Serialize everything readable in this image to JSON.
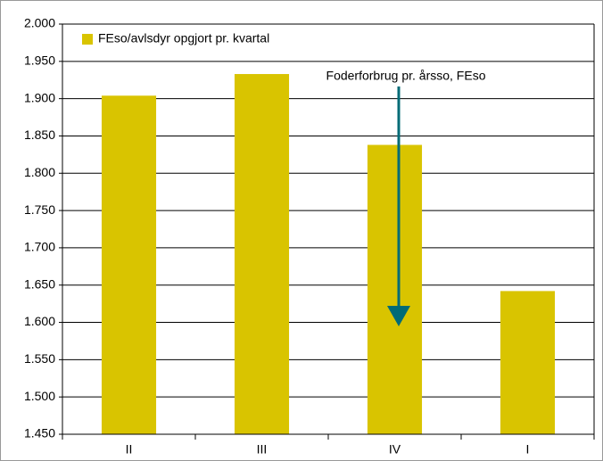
{
  "chart_data": {
    "type": "bar",
    "categories": [
      "II",
      "III",
      "IV",
      "I"
    ],
    "series": [
      {
        "name": "FEso/avlsdyr opgjort pr. kvartal",
        "color": "#d9c400",
        "values": [
          1904,
          1933,
          1838,
          1642
        ]
      }
    ],
    "ylim": [
      1450,
      2000
    ],
    "yticks": [
      {
        "value": 1450,
        "label": "1.450"
      },
      {
        "value": 1500,
        "label": "1.500"
      },
      {
        "value": 1550,
        "label": "1.550"
      },
      {
        "value": 1600,
        "label": "1.600"
      },
      {
        "value": 1650,
        "label": "1.650"
      },
      {
        "value": 1700,
        "label": "1.700"
      },
      {
        "value": 1750,
        "label": "1.750"
      },
      {
        "value": 1800,
        "label": "1.800"
      },
      {
        "value": 1850,
        "label": "1.850"
      },
      {
        "value": 1900,
        "label": "1.900"
      },
      {
        "value": 1950,
        "label": "1.950"
      },
      {
        "value": 2000,
        "label": "2.000"
      }
    ],
    "grid": true,
    "legend": "upper left",
    "annotation": "Foderforbrug pr. årsso, FEso"
  }
}
